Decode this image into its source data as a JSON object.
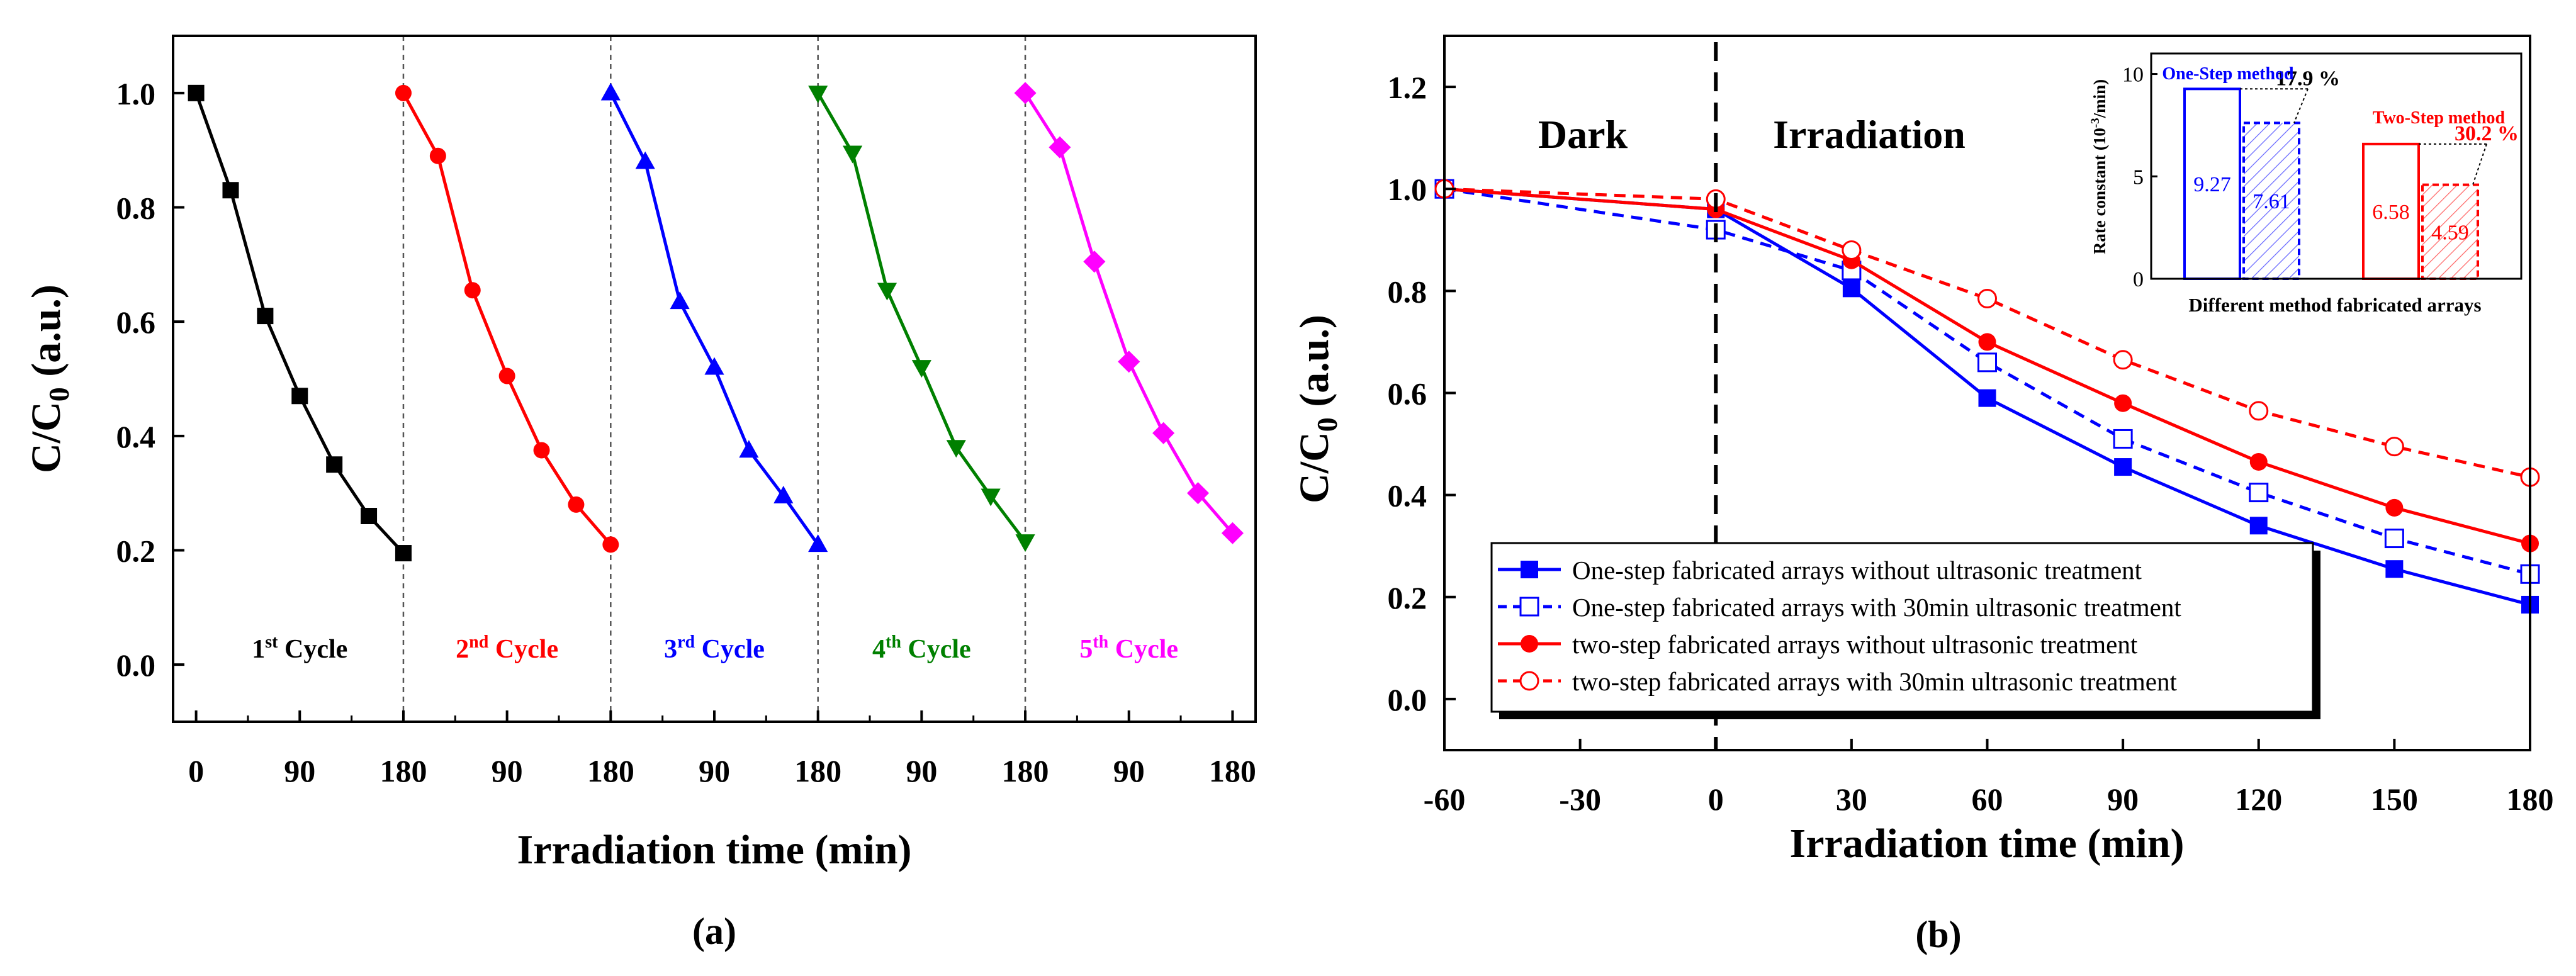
{
  "chart_data": [
    {
      "id": "a",
      "type": "line",
      "panel_label": "(a)",
      "xlabel": "Irradiation time (min)",
      "ylabel": "C/C",
      "ylabel_sub": "0",
      "ylabel_suffix": " (a.u.)",
      "ylim": [
        -0.1,
        1.1
      ],
      "yticks": [
        "0.0",
        "0.2",
        "0.4",
        "0.6",
        "0.8",
        "1.0"
      ],
      "yticks_values": [
        0.0,
        0.2,
        0.4,
        0.6,
        0.8,
        1.0
      ],
      "xticks": [
        "0",
        "90",
        "180",
        "90",
        "180",
        "90",
        "180",
        "90",
        "180",
        "90",
        "180"
      ],
      "xticks_values": [
        0,
        90,
        180,
        270,
        360,
        450,
        540,
        630,
        720,
        810,
        900
      ],
      "xlim": [
        -20,
        920
      ],
      "cycle_dividers": [
        180,
        360,
        540,
        720
      ],
      "series": [
        {
          "name": "1st Cycle",
          "label_main": "1",
          "label_sup": "st",
          "label_rest": " Cycle",
          "color": "#000000",
          "marker": "square",
          "x": [
            0,
            30,
            60,
            90,
            120,
            150,
            180
          ],
          "y": [
            1.0,
            0.83,
            0.61,
            0.47,
            0.35,
            0.26,
            0.195
          ]
        },
        {
          "name": "2nd Cycle",
          "label_main": "2",
          "label_sup": "nd",
          "label_rest": " Cycle",
          "color": "#ff0000",
          "marker": "circle",
          "x": [
            180,
            210,
            240,
            270,
            300,
            330,
            360
          ],
          "y": [
            1.0,
            0.89,
            0.655,
            0.505,
            0.375,
            0.28,
            0.21
          ]
        },
        {
          "name": "3rd Cycle",
          "label_main": "3",
          "label_sup": "rd",
          "label_rest": " Cycle",
          "color": "#0000ff",
          "marker": "triangle-up",
          "x": [
            360,
            390,
            420,
            450,
            480,
            510,
            540
          ],
          "y": [
            1.0,
            0.88,
            0.635,
            0.52,
            0.375,
            0.295,
            0.21
          ]
        },
        {
          "name": "4th Cycle",
          "label_main": "4",
          "label_sup": "th",
          "label_rest": " Cycle",
          "color": "#008000",
          "marker": "triangle-down",
          "x": [
            540,
            570,
            600,
            630,
            660,
            690,
            720
          ],
          "y": [
            1.0,
            0.895,
            0.655,
            0.52,
            0.38,
            0.295,
            0.215
          ]
        },
        {
          "name": "5th Cycle",
          "label_main": "5",
          "label_sup": "th",
          "label_rest": " Cycle",
          "color": "#ff00ff",
          "marker": "diamond",
          "x": [
            720,
            750,
            780,
            810,
            840,
            870,
            900
          ],
          "y": [
            1.0,
            0.905,
            0.705,
            0.53,
            0.405,
            0.3,
            0.23
          ]
        }
      ]
    },
    {
      "id": "b",
      "type": "line",
      "panel_label": "(b)",
      "xlabel": "Irradiation time (min)",
      "ylabel": "C/C",
      "ylabel_sub": "0",
      "ylabel_suffix": " (a.u.)",
      "xlim": [
        -60,
        180
      ],
      "ylim": [
        -0.1,
        1.3
      ],
      "xticks": [
        "-60",
        "-30",
        "0",
        "30",
        "60",
        "90",
        "120",
        "150",
        "180"
      ],
      "xticks_values": [
        -60,
        -30,
        0,
        30,
        60,
        90,
        120,
        150,
        180
      ],
      "yticks": [
        "0.0",
        "0.2",
        "0.4",
        "0.6",
        "0.8",
        "1.0",
        "1.2"
      ],
      "yticks_values": [
        0.0,
        0.2,
        0.4,
        0.6,
        0.8,
        1.0,
        1.2
      ],
      "divider_x": 0,
      "region_labels": {
        "dark": "Dark",
        "irradiation": "Irradiation"
      },
      "legend_position": "bottom-left",
      "series": [
        {
          "name": "One-step fabricated arrays without ultrasonic treatment",
          "color": "#0000ff",
          "dash": false,
          "marker": "square",
          "filled": true,
          "x": [
            -60,
            0,
            30,
            60,
            90,
            120,
            150,
            180
          ],
          "y": [
            1.0,
            0.96,
            0.805,
            0.59,
            0.455,
            0.34,
            0.255,
            0.185
          ]
        },
        {
          "name": "One-step fabricated arrays with 30min ultrasonic treatment",
          "color": "#0000ff",
          "dash": true,
          "marker": "square",
          "filled": false,
          "x": [
            -60,
            0,
            30,
            60,
            90,
            120,
            150,
            180
          ],
          "y": [
            1.0,
            0.92,
            0.84,
            0.66,
            0.51,
            0.405,
            0.315,
            0.245
          ]
        },
        {
          "name": "two-step fabricated arrays without ultrasonic treatment",
          "color": "#ff0000",
          "dash": false,
          "marker": "circle",
          "filled": true,
          "x": [
            -60,
            0,
            30,
            60,
            90,
            120,
            150,
            180
          ],
          "y": [
            1.0,
            0.96,
            0.86,
            0.7,
            0.58,
            0.465,
            0.375,
            0.305
          ]
        },
        {
          "name": "two-step fabricated arrays with 30min ultrasonic treatment",
          "color": "#ff0000",
          "dash": true,
          "marker": "circle",
          "filled": false,
          "x": [
            -60,
            0,
            30,
            60,
            90,
            120,
            150,
            180
          ],
          "y": [
            1.0,
            0.98,
            0.88,
            0.785,
            0.665,
            0.565,
            0.495,
            0.435
          ]
        }
      ]
    },
    {
      "id": "b-inset",
      "type": "bar",
      "xlabel": "Different method fabricated arrays",
      "ylabel": "Rate constant (10",
      "ylabel_sup": "-3",
      "ylabel_suffix": "/min)",
      "ylim": [
        0,
        11
      ],
      "yticks": [
        "0",
        "5",
        "10"
      ],
      "yticks_values": [
        0,
        5,
        10
      ],
      "groups": [
        {
          "label": "One-Step method",
          "color": "#0000ff",
          "improvement": "17.9 %",
          "bars": [
            {
              "value": 9.27,
              "label": "9.27",
              "style": "solid"
            },
            {
              "value": 7.61,
              "label": "7.61",
              "style": "hatched-dashed"
            }
          ]
        },
        {
          "label": "Two-Step method",
          "color": "#ff0000",
          "improvement": "30.2 %",
          "bars": [
            {
              "value": 6.58,
              "label": "6.58",
              "style": "solid"
            },
            {
              "value": 4.59,
              "label": "4.59",
              "style": "hatched-dashed"
            }
          ]
        }
      ]
    }
  ]
}
